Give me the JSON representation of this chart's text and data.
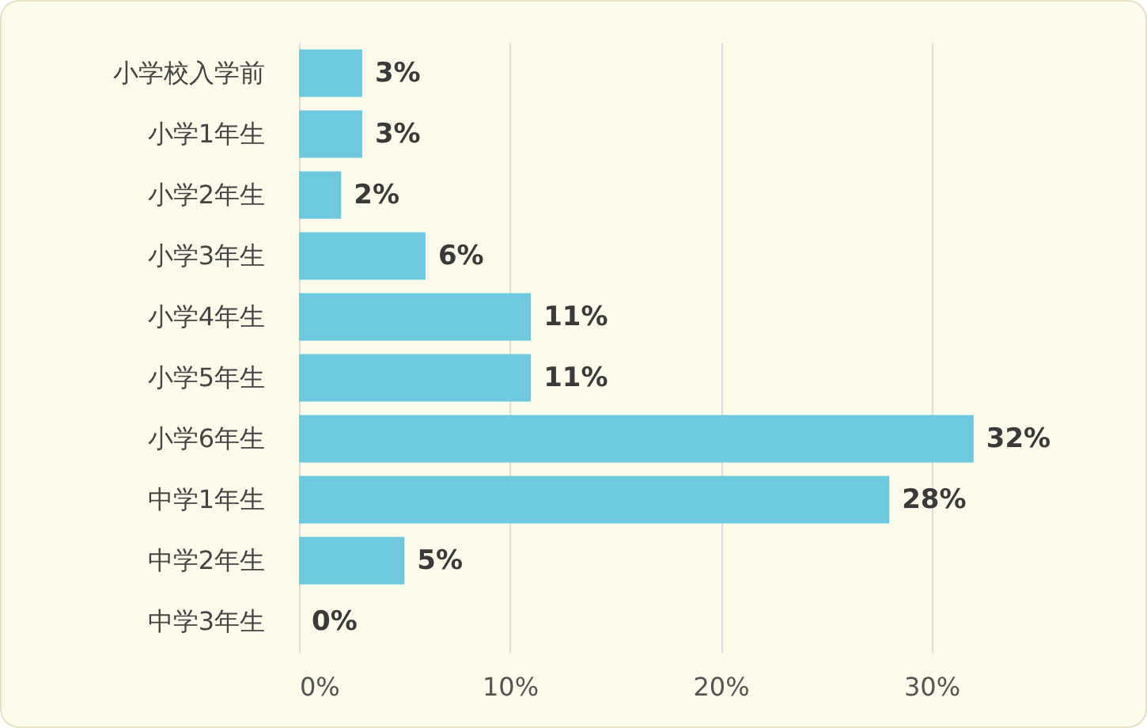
{
  "chart_data": {
    "type": "bar",
    "orientation": "horizontal",
    "categories": [
      "小学校入学前",
      "小学1年生",
      "小学2年生",
      "小学3年生",
      "小学4年生",
      "小学5年生",
      "小学6年生",
      "中学1年生",
      "中学2年生",
      "中学3年生"
    ],
    "values": [
      3,
      3,
      2,
      6,
      11,
      11,
      32,
      28,
      5,
      0
    ],
    "color": "#6ec8de",
    "xlim": [
      0,
      40
    ],
    "xticks": [
      {
        "value": 0,
        "label": "0%"
      },
      {
        "value": 10,
        "label": "10%"
      },
      {
        "value": 20,
        "label": "20%"
      },
      {
        "value": 30,
        "label": "30%"
      }
    ],
    "value_labels": [
      "3%",
      "3%",
      "2%",
      "6%",
      "11%",
      "11%",
      "32%",
      "28%",
      "5%",
      "0%"
    ],
    "grid": "x"
  }
}
